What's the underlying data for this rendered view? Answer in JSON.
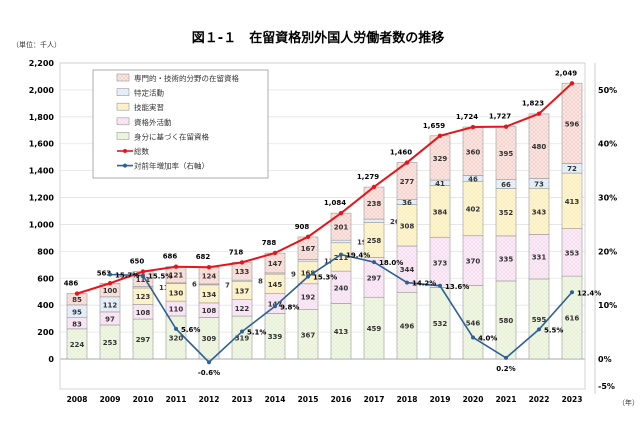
{
  "chart_data": {
    "type": "bar",
    "title": "図１-１　在留資格別外国人労働者数の推移",
    "unit_label": "（単位：千人）",
    "x_unit_label": "（年）",
    "categories": [
      "2008",
      "2009",
      "2010",
      "2011",
      "2012",
      "2013",
      "2014",
      "2015",
      "2016",
      "2017",
      "2018",
      "2019",
      "2020",
      "2021",
      "2022",
      "2023"
    ],
    "stacked": true,
    "series": [
      {
        "name": "身分に基づく在留資格",
        "color": "#e6f0d4",
        "values": [
          224,
          253,
          297,
          320,
          309,
          319,
          339,
          367,
          413,
          459,
          496,
          532,
          546,
          580,
          595,
          616
        ]
      },
      {
        "name": "資格外活動",
        "color": "#f6dcef",
        "values": [
          83,
          97,
          108,
          110,
          108,
          122,
          147,
          192,
          240,
          297,
          344,
          373,
          370,
          335,
          331,
          353
        ]
      },
      {
        "name": "技能実習",
        "color": "#fbedb6",
        "values": [
          0,
          0,
          123,
          130,
          134,
          137,
          145,
          168,
          211,
          258,
          308,
          384,
          402,
          352,
          343,
          413
        ]
      },
      {
        "name": "特定活動",
        "color": "#dbe8f5",
        "values": [
          95,
          112,
          11,
          6,
          7,
          8,
          9,
          13,
          19,
          26,
          36,
          41,
          46,
          66,
          73,
          72
        ]
      },
      {
        "name": "専門的・技術的分野の在留資格",
        "color": "#f6d2ca",
        "values": [
          85,
          100,
          111,
          121,
          124,
          133,
          147,
          167,
          201,
          238,
          277,
          329,
          360,
          395,
          480,
          596
        ]
      }
    ],
    "totals": {
      "name": "総数",
      "color": "#e8141c",
      "values": [
        486,
        563,
        650,
        686,
        682,
        718,
        788,
        908,
        1084,
        1279,
        1460,
        1659,
        1724,
        1727,
        1823,
        2049
      ],
      "labels": [
        "486",
        "563",
        "650",
        "686",
        "682",
        "718",
        "788",
        "908",
        "1,084",
        "1,279",
        "1,460",
        "1,659",
        "1,724",
        "1,727",
        "1,823",
        "2,049"
      ]
    },
    "growth": {
      "name": "対前年増加率（右軸）",
      "color": "#2e6096",
      "values": [
        null,
        15.7,
        15.5,
        5.6,
        -0.6,
        5.1,
        9.8,
        15.3,
        19.4,
        18.0,
        14.2,
        13.6,
        4.0,
        0.2,
        5.5,
        12.4
      ]
    },
    "y_left": {
      "ylim": [
        0,
        2200
      ],
      "ticks": [
        "0",
        "200",
        "400",
        "600",
        "800",
        "1,000",
        "1,200",
        "1,400",
        "1,600",
        "1,800",
        "2,000",
        "2,200"
      ]
    },
    "y_right": {
      "ylim": [
        -5,
        55
      ],
      "ticks": [
        "-5%",
        "0%",
        "10%",
        "20%",
        "30%",
        "40%",
        "50%"
      ]
    },
    "legend_order": [
      "専門的・技術的分野の在留資格",
      "特定活動",
      "技能実習",
      "資格外活動",
      "身分に基づく在留資格",
      "総数",
      "対前年増加率（右軸）"
    ],
    "legend_position": "top-left",
    "grid": true
  }
}
